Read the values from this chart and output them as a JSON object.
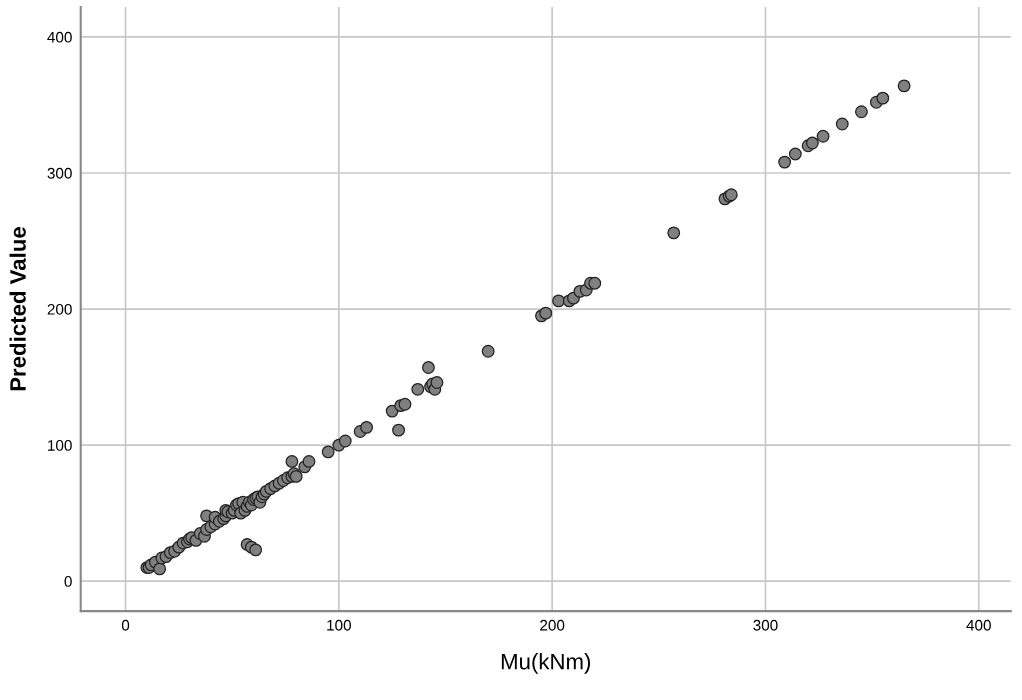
{
  "chart_data": {
    "type": "scatter",
    "xlabel": "Mu(kNm)",
    "ylabel": "Predicted Value",
    "xlim": [
      -21,
      415
    ],
    "ylim": [
      -22,
      422
    ],
    "xticks": [
      0,
      100,
      200,
      300,
      400
    ],
    "yticks": [
      0,
      100,
      200,
      300,
      400
    ],
    "grid": true,
    "marker": "circle",
    "series": [
      {
        "color": "#808080",
        "x": [
          10,
          11,
          12,
          14,
          16,
          17,
          19,
          21,
          23,
          25,
          27,
          29,
          30,
          31,
          33,
          35,
          37,
          38,
          38,
          40,
          42,
          42,
          44,
          46,
          47,
          47,
          48,
          50,
          51,
          52,
          53,
          54,
          55,
          56,
          57,
          57,
          58,
          59,
          59,
          60,
          61,
          61,
          62,
          63,
          64,
          65,
          66,
          68,
          70,
          72,
          74,
          76,
          78,
          78,
          79,
          80,
          84,
          86,
          95,
          100,
          103,
          110,
          113,
          125,
          128,
          129,
          131,
          137,
          142,
          143,
          144,
          145,
          146,
          170,
          195,
          197,
          203,
          208,
          210,
          213,
          216,
          218,
          220,
          257,
          281,
          283,
          284,
          309,
          314,
          320,
          322,
          327,
          336,
          345,
          352,
          355,
          365
        ],
        "values": [
          10,
          10,
          12,
          14,
          9,
          17,
          18,
          21,
          22,
          25,
          28,
          29,
          31,
          32,
          30,
          35,
          33,
          38,
          48,
          40,
          42,
          47,
          44,
          46,
          48,
          52,
          51,
          50,
          52,
          56,
          57,
          50,
          58,
          52,
          55,
          27,
          58,
          56,
          25,
          60,
          61,
          23,
          62,
          58,
          62,
          64,
          66,
          68,
          70,
          72,
          74,
          76,
          77,
          88,
          79,
          77,
          84,
          88,
          95,
          100,
          103,
          110,
          113,
          125,
          111,
          129,
          130,
          141,
          157,
          143,
          145,
          141,
          146,
          169,
          195,
          197,
          206,
          206,
          208,
          213,
          214,
          219,
          219,
          256,
          281,
          283,
          284,
          308,
          314,
          320,
          322,
          327,
          336,
          345,
          352,
          355,
          364
        ]
      }
    ]
  }
}
